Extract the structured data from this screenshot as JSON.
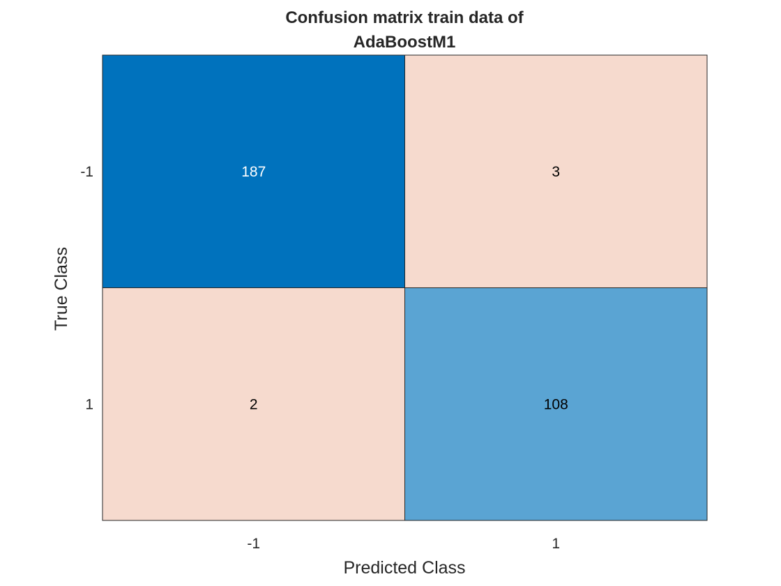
{
  "chart_data": {
    "type": "heatmap",
    "subtype": "confusion-matrix",
    "title_lines": [
      "Confusion matrix train data of",
      "AdaBoostM1"
    ],
    "xlabel": "Predicted Class",
    "ylabel": "True Class",
    "x_categories": [
      "-1",
      "1"
    ],
    "y_categories": [
      "-1",
      "1"
    ],
    "matrix": [
      [
        187,
        3
      ],
      [
        2,
        108
      ]
    ],
    "colors": {
      "diagonal_max": "#0072bd",
      "diagonal_min": "#5aa4d3",
      "off_diagonal": "#f6dace",
      "text_on_dark": "#ffffff",
      "text_on_light": "#000000",
      "grid": "#262626",
      "background": "#ffffff"
    },
    "grid": true,
    "legend": "none"
  }
}
